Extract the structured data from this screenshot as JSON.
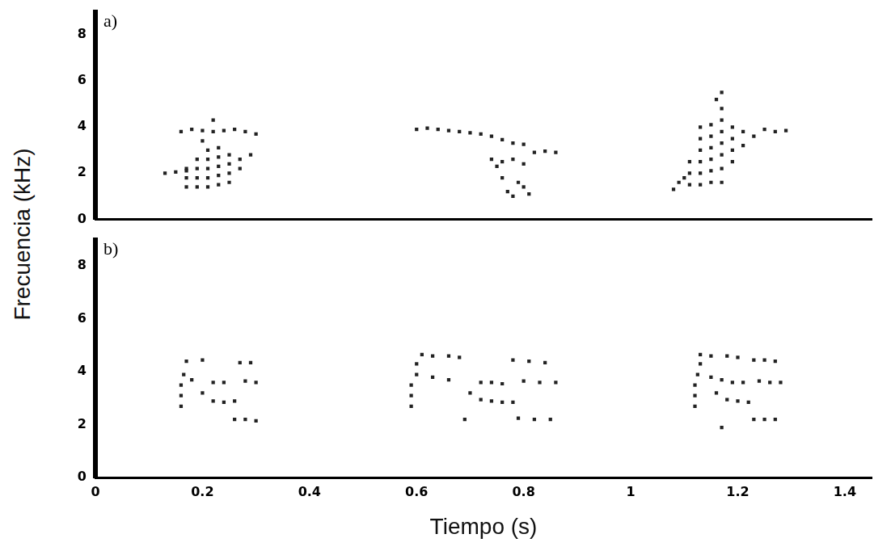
{
  "ylabel": "Frecuencia (kHz)",
  "chart_data": [
    {
      "type": "scatter",
      "panel": "a)",
      "xlim": [
        0,
        1.45
      ],
      "ylim": [
        0,
        9
      ],
      "yticks": [
        0,
        2,
        4,
        6,
        8
      ],
      "grid": false,
      "tick_labels": "y",
      "series": [
        {
          "color": "#222222",
          "marker": "square",
          "points": [
            [
              0.13,
              2.0
            ],
            [
              0.15,
              2.05
            ],
            [
              0.17,
              2.1
            ],
            [
              0.16,
              3.8
            ],
            [
              0.18,
              3.9
            ],
            [
              0.2,
              3.85
            ],
            [
              0.22,
              3.8
            ],
            [
              0.24,
              3.85
            ],
            [
              0.26,
              3.9
            ],
            [
              0.28,
              3.8
            ],
            [
              0.3,
              3.7
            ],
            [
              0.17,
              1.4
            ],
            [
              0.17,
              1.8
            ],
            [
              0.17,
              2.2
            ],
            [
              0.19,
              1.4
            ],
            [
              0.19,
              1.8
            ],
            [
              0.19,
              2.2
            ],
            [
              0.19,
              2.6
            ],
            [
              0.21,
              1.4
            ],
            [
              0.21,
              1.8
            ],
            [
              0.21,
              2.2
            ],
            [
              0.21,
              2.6
            ],
            [
              0.21,
              3.0
            ],
            [
              0.23,
              1.5
            ],
            [
              0.23,
              1.9
            ],
            [
              0.23,
              2.3
            ],
            [
              0.23,
              2.7
            ],
            [
              0.23,
              3.1
            ],
            [
              0.25,
              1.6
            ],
            [
              0.25,
              2.0
            ],
            [
              0.25,
              2.4
            ],
            [
              0.25,
              2.8
            ],
            [
              0.27,
              2.2
            ],
            [
              0.27,
              2.6
            ],
            [
              0.29,
              2.8
            ],
            [
              0.22,
              4.3
            ],
            [
              0.2,
              3.4
            ],
            [
              0.6,
              3.9
            ],
            [
              0.62,
              3.95
            ],
            [
              0.64,
              3.9
            ],
            [
              0.66,
              3.85
            ],
            [
              0.68,
              3.8
            ],
            [
              0.7,
              3.75
            ],
            [
              0.72,
              3.7
            ],
            [
              0.74,
              3.6
            ],
            [
              0.76,
              3.45
            ],
            [
              0.78,
              3.3
            ],
            [
              0.8,
              3.25
            ],
            [
              0.82,
              2.9
            ],
            [
              0.84,
              2.95
            ],
            [
              0.86,
              2.9
            ],
            [
              0.74,
              2.6
            ],
            [
              0.76,
              2.5
            ],
            [
              0.78,
              2.6
            ],
            [
              0.8,
              2.4
            ],
            [
              0.76,
              1.8
            ],
            [
              0.77,
              1.2
            ],
            [
              0.78,
              1.0
            ],
            [
              0.79,
              1.6
            ],
            [
              0.8,
              1.4
            ],
            [
              0.81,
              1.1
            ],
            [
              0.75,
              2.3
            ],
            [
              1.08,
              1.3
            ],
            [
              1.09,
              1.6
            ],
            [
              1.1,
              1.8
            ],
            [
              1.11,
              1.5
            ],
            [
              1.11,
              2.0
            ],
            [
              1.11,
              2.5
            ],
            [
              1.13,
              1.5
            ],
            [
              1.13,
              2.0
            ],
            [
              1.13,
              2.5
            ],
            [
              1.13,
              3.0
            ],
            [
              1.13,
              3.5
            ],
            [
              1.13,
              4.0
            ],
            [
              1.15,
              1.6
            ],
            [
              1.15,
              2.1
            ],
            [
              1.15,
              2.6
            ],
            [
              1.15,
              3.1
            ],
            [
              1.15,
              3.6
            ],
            [
              1.15,
              4.1
            ],
            [
              1.17,
              1.6
            ],
            [
              1.17,
              2.2
            ],
            [
              1.17,
              2.8
            ],
            [
              1.17,
              3.3
            ],
            [
              1.17,
              3.8
            ],
            [
              1.17,
              4.3
            ],
            [
              1.17,
              4.8
            ],
            [
              1.17,
              5.5
            ],
            [
              1.19,
              2.5
            ],
            [
              1.19,
              3.0
            ],
            [
              1.19,
              3.5
            ],
            [
              1.19,
              4.0
            ],
            [
              1.21,
              3.2
            ],
            [
              1.21,
              3.8
            ],
            [
              1.23,
              3.6
            ],
            [
              1.25,
              3.9
            ],
            [
              1.27,
              3.8
            ],
            [
              1.29,
              3.85
            ],
            [
              1.16,
              5.2
            ]
          ]
        }
      ]
    },
    {
      "type": "scatter",
      "panel": "b)",
      "xlabel": "Tiempo (s)",
      "xlim": [
        0,
        1.45
      ],
      "ylim": [
        0,
        9
      ],
      "xticks": [
        0,
        0.2,
        0.4,
        0.6,
        0.8,
        1,
        1.2,
        1.4
      ],
      "yticks": [
        0,
        2,
        4,
        6,
        8
      ],
      "grid": false,
      "series": [
        {
          "color": "#222222",
          "marker": "square",
          "points": [
            [
              0.16,
              2.7
            ],
            [
              0.16,
              3.1
            ],
            [
              0.16,
              3.5
            ],
            [
              0.165,
              3.9
            ],
            [
              0.17,
              4.4
            ],
            [
              0.18,
              3.7
            ],
            [
              0.2,
              4.45
            ],
            [
              0.22,
              3.6
            ],
            [
              0.24,
              3.6
            ],
            [
              0.22,
              2.9
            ],
            [
              0.24,
              2.85
            ],
            [
              0.26,
              2.9
            ],
            [
              0.27,
              4.35
            ],
            [
              0.29,
              4.35
            ],
            [
              0.28,
              3.65
            ],
            [
              0.3,
              3.6
            ],
            [
              0.26,
              2.2
            ],
            [
              0.28,
              2.2
            ],
            [
              0.3,
              2.15
            ],
            [
              0.2,
              3.2
            ],
            [
              0.59,
              2.7
            ],
            [
              0.59,
              3.1
            ],
            [
              0.59,
              3.5
            ],
            [
              0.6,
              3.9
            ],
            [
              0.6,
              4.3
            ],
            [
              0.61,
              4.65
            ],
            [
              0.63,
              4.6
            ],
            [
              0.66,
              4.6
            ],
            [
              0.68,
              4.55
            ],
            [
              0.63,
              3.8
            ],
            [
              0.66,
              3.7
            ],
            [
              0.7,
              3.2
            ],
            [
              0.72,
              3.6
            ],
            [
              0.74,
              3.6
            ],
            [
              0.76,
              3.55
            ],
            [
              0.72,
              2.95
            ],
            [
              0.74,
              2.9
            ],
            [
              0.76,
              2.85
            ],
            [
              0.78,
              2.85
            ],
            [
              0.78,
              4.45
            ],
            [
              0.81,
              4.4
            ],
            [
              0.84,
              4.35
            ],
            [
              0.8,
              3.65
            ],
            [
              0.83,
              3.6
            ],
            [
              0.86,
              3.6
            ],
            [
              0.79,
              2.25
            ],
            [
              0.82,
              2.2
            ],
            [
              0.85,
              2.2
            ],
            [
              0.69,
              2.2
            ],
            [
              1.12,
              2.7
            ],
            [
              1.12,
              3.1
            ],
            [
              1.12,
              3.5
            ],
            [
              1.125,
              3.9
            ],
            [
              1.13,
              4.3
            ],
            [
              1.13,
              4.65
            ],
            [
              1.15,
              4.6
            ],
            [
              1.18,
              4.6
            ],
            [
              1.2,
              4.55
            ],
            [
              1.15,
              3.8
            ],
            [
              1.17,
              3.7
            ],
            [
              1.19,
              3.6
            ],
            [
              1.21,
              3.6
            ],
            [
              1.18,
              2.95
            ],
            [
              1.2,
              2.9
            ],
            [
              1.22,
              2.85
            ],
            [
              1.23,
              4.45
            ],
            [
              1.25,
              4.45
            ],
            [
              1.27,
              4.4
            ],
            [
              1.24,
              3.65
            ],
            [
              1.26,
              3.6
            ],
            [
              1.28,
              3.6
            ],
            [
              1.23,
              2.2
            ],
            [
              1.25,
              2.2
            ],
            [
              1.27,
              2.2
            ],
            [
              1.17,
              1.9
            ],
            [
              1.16,
              3.2
            ]
          ]
        }
      ]
    }
  ]
}
